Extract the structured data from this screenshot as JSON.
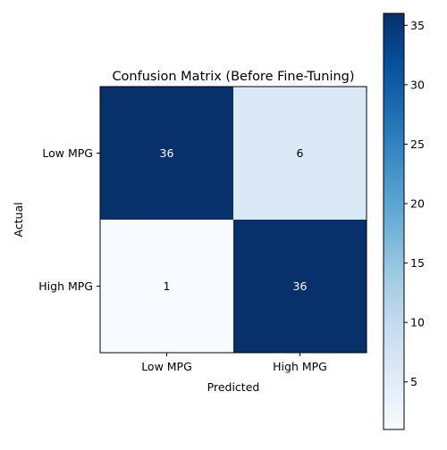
{
  "chart_data": {
    "type": "heatmap",
    "title": "Confusion Matrix (Before Fine-Tuning)",
    "xlabel": "Predicted",
    "ylabel": "Actual",
    "x_categories": [
      "Low MPG",
      "High MPG"
    ],
    "y_categories": [
      "Low MPG",
      "High MPG"
    ],
    "values": [
      [
        36,
        6
      ],
      [
        1,
        36
      ]
    ],
    "colormap": "Blues",
    "color_range": [
      1,
      36
    ],
    "colorbar_ticks": [
      5,
      10,
      15,
      20,
      25,
      30,
      35
    ],
    "text_color_dark": "#ffffff",
    "text_color_light": "#000000"
  }
}
